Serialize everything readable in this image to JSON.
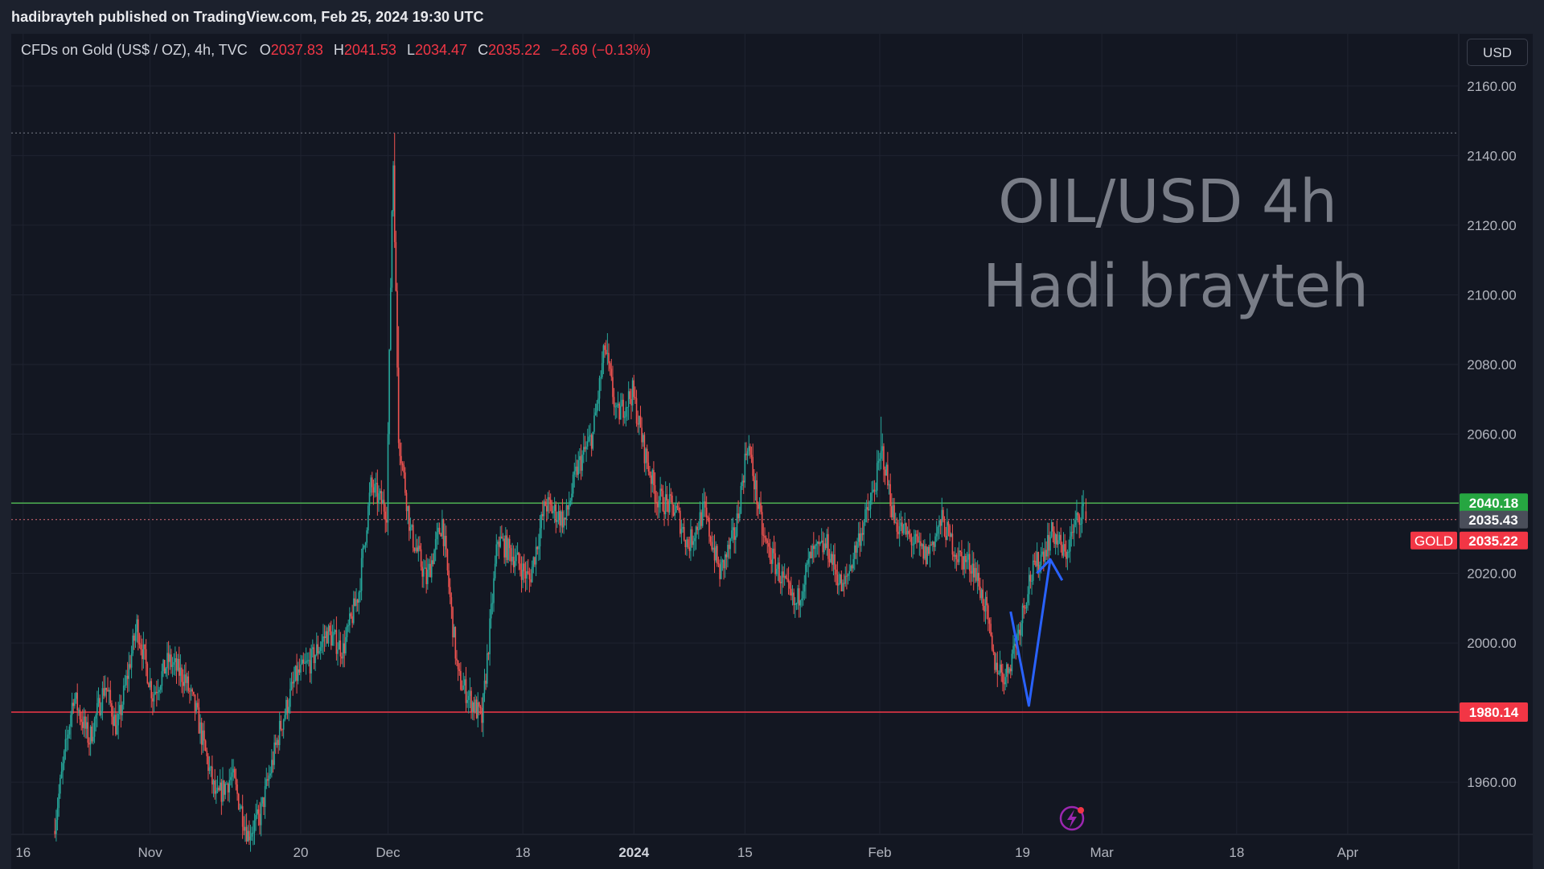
{
  "header": {
    "publisher_text": "hadibrayteh published on TradingView.com, Feb 25, 2024 19:30 UTC"
  },
  "legend": {
    "symbol_text": "CFDs on Gold (US$ / OZ), 4h, TVC",
    "open_label": "O",
    "open_value": "2037.83",
    "high_label": "H",
    "high_value": "2041.53",
    "low_label": "L",
    "low_value": "2034.47",
    "close_label": "C",
    "close_value": "2035.22",
    "change_text": "−2.69 (−0.13%)"
  },
  "currency_button": "USD",
  "watermark": {
    "line1": "OIL/USD 4h",
    "line2": "Hadi brayteh"
  },
  "colors": {
    "up": "#26a69a",
    "down": "#ef5350",
    "support": "#f23645",
    "resistance": "#4caf50",
    "arrow": "#2962ff",
    "background": "#131722"
  },
  "chart_data": {
    "type": "candlestick",
    "symbol": "CFDs on Gold (US$ / OZ)",
    "timeframe": "4h",
    "ylim": [
      1945,
      2175
    ],
    "y_ticks": [
      "1960.00",
      "1980.00",
      "2000.00",
      "2020.00",
      "2040.00",
      "2060.00",
      "2080.00",
      "2100.00",
      "2120.00",
      "2140.00",
      "2160.00"
    ],
    "x_ticks": [
      {
        "label": "16",
        "day": 0
      },
      {
        "label": "Nov",
        "day": 16
      },
      {
        "label": "20",
        "day": 35
      },
      {
        "label": "Dec",
        "day": 46
      },
      {
        "label": "18",
        "day": 63
      },
      {
        "label": "2024",
        "day": 77,
        "bold": true
      },
      {
        "label": "15",
        "day": 91
      },
      {
        "label": "Feb",
        "day": 108
      },
      {
        "label": "19",
        "day": 126
      },
      {
        "label": "Mar",
        "day": 136
      },
      {
        "label": "18",
        "day": 153
      },
      {
        "label": "Apr",
        "day": 167
      }
    ],
    "x_domain_days": [
      -1.5,
      181
    ],
    "path_points": [
      [
        4.0,
        1946
      ],
      [
        6.5,
        1985
      ],
      [
        8.5,
        1972
      ],
      [
        10.5,
        1988
      ],
      [
        12.0,
        1975
      ],
      [
        14.5,
        2005
      ],
      [
        16.5,
        1985
      ],
      [
        18.5,
        1995
      ],
      [
        20.5,
        1990
      ],
      [
        22.0,
        1980
      ],
      [
        24.5,
        1955
      ],
      [
        26.5,
        1962
      ],
      [
        28.5,
        1945
      ],
      [
        30.0,
        1950
      ],
      [
        32.5,
        1975
      ],
      [
        34.5,
        1990
      ],
      [
        36.5,
        1995
      ],
      [
        38.5,
        2003
      ],
      [
        40.5,
        1998
      ],
      [
        42.5,
        2015
      ],
      [
        44.0,
        2045
      ],
      [
        46.0,
        2038
      ],
      [
        46.8,
        2142
      ],
      [
        47.5,
        2060
      ],
      [
        49.0,
        2032
      ],
      [
        51.0,
        2018
      ],
      [
        53.0,
        2035
      ],
      [
        55.0,
        1990
      ],
      [
        57.0,
        1982
      ],
      [
        58.0,
        1978
      ],
      [
        60.0,
        2030
      ],
      [
        62.0,
        2025
      ],
      [
        64.0,
        2018
      ],
      [
        66.0,
        2040
      ],
      [
        68.5,
        2035
      ],
      [
        70.0,
        2050
      ],
      [
        72.0,
        2060
      ],
      [
        73.5,
        2085
      ],
      [
        75.0,
        2065
      ],
      [
        77.0,
        2072
      ],
      [
        78.5,
        2055
      ],
      [
        80.0,
        2042
      ],
      [
        82.5,
        2038
      ],
      [
        84.0,
        2028
      ],
      [
        86.0,
        2038
      ],
      [
        88.0,
        2020
      ],
      [
        90.0,
        2032
      ],
      [
        91.5,
        2058
      ],
      [
        93.5,
        2030
      ],
      [
        95.5,
        2020
      ],
      [
        97.5,
        2010
      ],
      [
        99.5,
        2025
      ],
      [
        101.5,
        2028
      ],
      [
        103.5,
        2015
      ],
      [
        105.5,
        2030
      ],
      [
        107.0,
        2040
      ],
      [
        108.5,
        2055
      ],
      [
        110.0,
        2035
      ],
      [
        112.0,
        2030
      ],
      [
        114.0,
        2025
      ],
      [
        116.0,
        2035
      ],
      [
        118.0,
        2025
      ],
      [
        120.0,
        2022
      ],
      [
        121.5,
        2010
      ],
      [
        122.5,
        1995
      ],
      [
        124.0,
        1990
      ],
      [
        125.5,
        2002
      ],
      [
        127.0,
        2018
      ],
      [
        128.5,
        2025
      ],
      [
        130.0,
        2032
      ],
      [
        131.5,
        2025
      ],
      [
        133.0,
        2035
      ],
      [
        134.0,
        2040
      ]
    ],
    "last_candle": {
      "open": 2037.83,
      "high": 2041.53,
      "low": 2034.47,
      "close": 2035.22
    },
    "horizontal_lines": [
      {
        "name": "resistance",
        "price": 2040.18,
        "label": "2040.18",
        "style": "solid"
      },
      {
        "name": "support",
        "price": 1980.14,
        "label": "1980.14",
        "style": "solid"
      },
      {
        "name": "previous-close",
        "price": 2035.43,
        "label": "2035.43",
        "style": "dotted"
      },
      {
        "name": "high-marker",
        "price": 2146.5,
        "style": "dotted"
      }
    ],
    "last_price_tag": {
      "symbol": "GOLD",
      "price": "2035.22"
    },
    "arrow": {
      "points": [
        [
          124.5,
          2009
        ],
        [
          126.8,
          1982
        ],
        [
          129.5,
          2024
        ]
      ],
      "head": [
        [
          127.8,
          2020
        ],
        [
          129.5,
          2024
        ],
        [
          131.0,
          2018
        ]
      ]
    }
  }
}
